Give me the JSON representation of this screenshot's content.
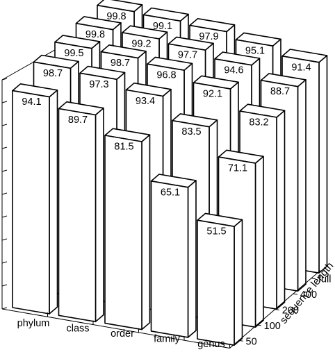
{
  "chart_data": {
    "type": "bar3d",
    "title": "",
    "xlabel": "",
    "ylabel": "sequence length",
    "zlabel": "",
    "zlim": [
      0,
      100
    ],
    "grid": false,
    "categories": [
      "phylum",
      "class",
      "order",
      "family",
      "genus"
    ],
    "depth_categories": [
      "50",
      "100",
      "200",
      "400",
      "full"
    ],
    "series": [
      {
        "name": "50",
        "values": [
          94.1,
          89.7,
          81.5,
          65.1,
          51.5
        ]
      },
      {
        "name": "100",
        "values": [
          98.7,
          97.3,
          93.4,
          83.5,
          71.1
        ]
      },
      {
        "name": "200",
        "values": [
          99.5,
          98.7,
          96.8,
          92.1,
          83.2
        ]
      },
      {
        "name": "400",
        "values": [
          99.8,
          99.2,
          97.7,
          94.6,
          88.7
        ]
      },
      {
        "name": "full",
        "values": [
          99.8,
          99.1,
          97.9,
          95.1,
          91.4
        ]
      }
    ],
    "value_labels": [
      [
        "94.1",
        "89.7",
        "81.5",
        "65.1",
        "51.5"
      ],
      [
        "98.7",
        "97.3",
        "93.4",
        "83.5",
        "71.1"
      ],
      [
        "99.5",
        "98.7",
        "96.8",
        "92.1",
        "83.2"
      ],
      [
        "99.8",
        "99.2",
        "97.7",
        "94.6",
        "88.7"
      ],
      [
        "99.8",
        "99.1",
        "97.9",
        "95.1",
        "91.4"
      ]
    ]
  }
}
